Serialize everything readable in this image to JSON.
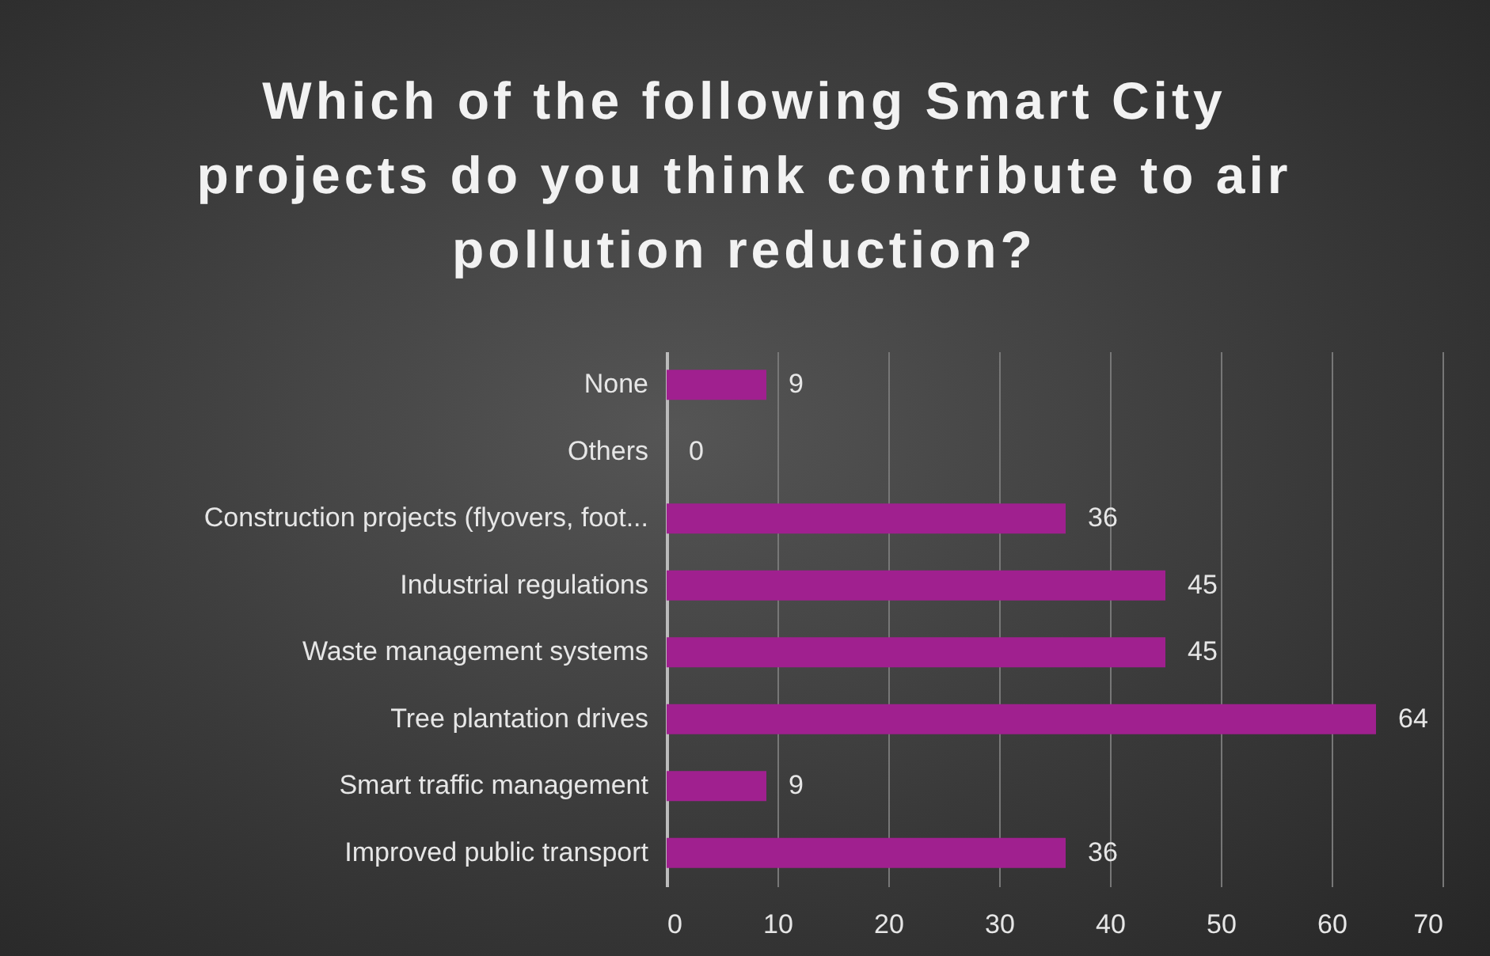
{
  "chart_data": {
    "type": "bar",
    "orientation": "horizontal",
    "title": "Which of the following Smart City projects do you think contribute to air pollution reduction?",
    "categories": [
      "None",
      "Others",
      "Construction projects (flyovers, foot...",
      "Industrial regulations",
      "Waste management systems",
      "Tree plantation drives",
      "Smart traffic management",
      "Improved public transport"
    ],
    "values": [
      9,
      0,
      36,
      45,
      45,
      64,
      9,
      36
    ],
    "color": "#a0208f",
    "xlim": [
      0,
      70
    ],
    "xticks": [
      0,
      10,
      20,
      30,
      40,
      50,
      60,
      70
    ],
    "grid": "x",
    "data_labels": true
  }
}
